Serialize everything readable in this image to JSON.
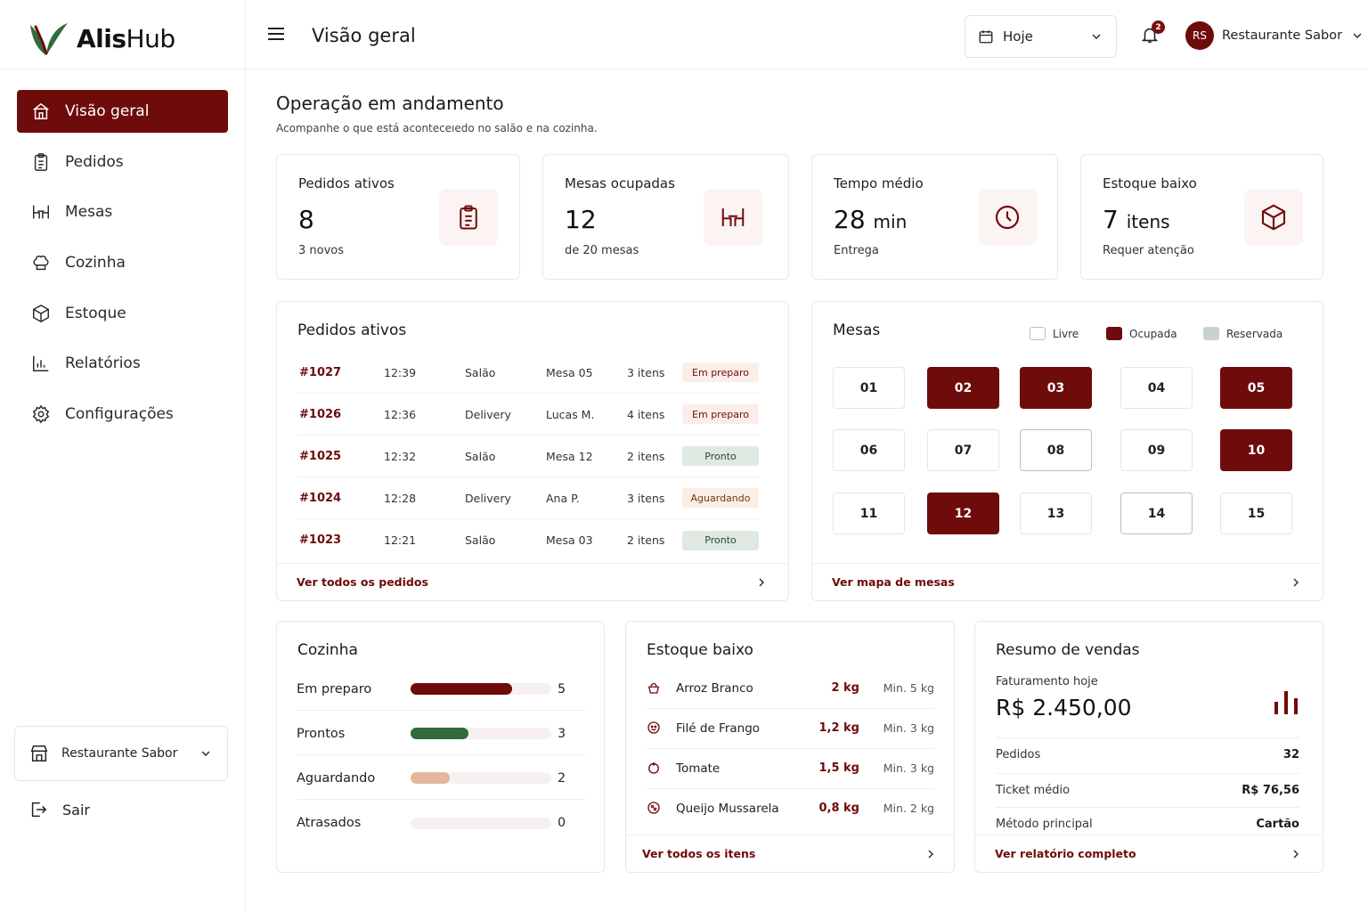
{
  "app": {
    "brand_a": "Alis",
    "brand_b": "Hub"
  },
  "colors": {
    "primary": "#6e0b0b",
    "ready": "#2f6b3f",
    "waiting": "#e2b89c",
    "reserved": "#c8d3cd"
  },
  "sidebar": {
    "items": [
      {
        "label": "Visão geral",
        "icon": "home-icon",
        "active": true
      },
      {
        "label": "Pedidos",
        "icon": "clipboard-icon"
      },
      {
        "label": "Mesas",
        "icon": "table-icon"
      },
      {
        "label": "Cozinha",
        "icon": "chef-hat-icon"
      },
      {
        "label": "Estoque",
        "icon": "box-icon"
      },
      {
        "label": "Relatórios",
        "icon": "bar-chart-icon"
      },
      {
        "label": "Configurações",
        "icon": "gear-icon"
      }
    ],
    "restaurant": "Restaurante Sabor",
    "logout": "Sair"
  },
  "header": {
    "title": "Visão geral",
    "date_filter": "Hoje",
    "notifications": "2",
    "user_initials": "RS",
    "user_name": "Restaurante Sabor"
  },
  "main": {
    "title": "Operação em andamento",
    "subtitle": "Acompanhe o que está aconteceıedo no salão e na cozinha."
  },
  "stats": [
    {
      "label": "Pedidos ativos",
      "value": "8",
      "unit": "",
      "sub": "3 novos",
      "icon": "clipboard-icon"
    },
    {
      "label": "Mesas ocupadas",
      "value": "12",
      "unit": "",
      "sub": "de 20 mesas",
      "icon": "table-icon"
    },
    {
      "label": "Tempo médio",
      "value": "28",
      "unit": "min",
      "sub": "Entrega",
      "icon": "clock-icon"
    },
    {
      "label": "Estoque baixo",
      "value": "7",
      "unit": "itens",
      "sub": "Requer atenção",
      "icon": "box-icon"
    }
  ],
  "orders": {
    "title": "Pedidos ativos",
    "rows": [
      {
        "id": "#1027",
        "time": "12:39",
        "type": "Salão",
        "dest": "Mesa 05",
        "items": "3 itens",
        "status": "Em preparo",
        "kind": "prep"
      },
      {
        "id": "#1026",
        "time": "12:36",
        "type": "Delivery",
        "dest": "Lucas M.",
        "items": "4 itens",
        "status": "Em preparo",
        "kind": "prep"
      },
      {
        "id": "#1025",
        "time": "12:32",
        "type": "Salão",
        "dest": "Mesa 12",
        "items": "2 itens",
        "status": "Pronto",
        "kind": "ready"
      },
      {
        "id": "#1024",
        "time": "12:28",
        "type": "Delivery",
        "dest": "Ana P.",
        "items": "3 itens",
        "status": "Aguardando",
        "kind": "wait"
      },
      {
        "id": "#1023",
        "time": "12:21",
        "type": "Salão",
        "dest": "Mesa 03",
        "items": "2 itens",
        "status": "Pronto",
        "kind": "ready"
      }
    ],
    "footer": "Ver todos os pedidos"
  },
  "tables": {
    "title": "Mesas",
    "legend": {
      "free": "Livre",
      "occupied": "Ocupada",
      "reserved": "Reservada"
    },
    "items": [
      {
        "n": "01",
        "s": "free"
      },
      {
        "n": "02",
        "s": "occ"
      },
      {
        "n": "03",
        "s": "occ"
      },
      {
        "n": "04",
        "s": "free"
      },
      {
        "n": "05",
        "s": "occ"
      },
      {
        "n": "06",
        "s": "free"
      },
      {
        "n": "07",
        "s": "free"
      },
      {
        "n": "08",
        "s": "res"
      },
      {
        "n": "09",
        "s": "free"
      },
      {
        "n": "10",
        "s": "occ"
      },
      {
        "n": "11",
        "s": "free"
      },
      {
        "n": "12",
        "s": "occ"
      },
      {
        "n": "13",
        "s": "free"
      },
      {
        "n": "14",
        "s": "res"
      },
      {
        "n": "15",
        "s": "free"
      }
    ],
    "footer": "Ver mapa de mesas"
  },
  "kitchen": {
    "title": "Cozinha",
    "rows": [
      {
        "label": "Em preparo",
        "count": "5",
        "fill": 0.72,
        "color": "#6e0b0b"
      },
      {
        "label": "Prontos",
        "count": "3",
        "fill": 0.41,
        "color": "#2f6b3f"
      },
      {
        "label": "Aguardando",
        "count": "2",
        "fill": 0.28,
        "color": "#e2b89c"
      },
      {
        "label": "Atrasados",
        "count": "0",
        "fill": 0,
        "color": "#e2b89c"
      }
    ]
  },
  "stock": {
    "title": "Estoque baixo",
    "rows": [
      {
        "name": "Arroz Branco",
        "qty": "2 kg",
        "min": "Min. 5 kg",
        "icon": "rice-icon"
      },
      {
        "name": "Filé de Frango",
        "qty": "1,2 kg",
        "min": "Min. 3 kg",
        "icon": "chicken-icon"
      },
      {
        "name": "Tomate",
        "qty": "1,5 kg",
        "min": "Min. 3 kg",
        "icon": "tomato-icon"
      },
      {
        "name": "Queijo Mussarela",
        "qty": "0,8 kg",
        "min": "Min. 2 kg",
        "icon": "cheese-icon"
      }
    ],
    "footer": "Ver todos os itens"
  },
  "sales": {
    "title": "Resumo de vendas",
    "revenue_label": "Faturamento hoje",
    "revenue": "R$ 2.450,00",
    "rows": [
      {
        "label": "Pedidos",
        "value": "32"
      },
      {
        "label": "Ticket médio",
        "value": "R$ 76,56"
      },
      {
        "label": "Método principal",
        "value": "Cartão"
      }
    ],
    "footer": "Ver relatório completo"
  }
}
